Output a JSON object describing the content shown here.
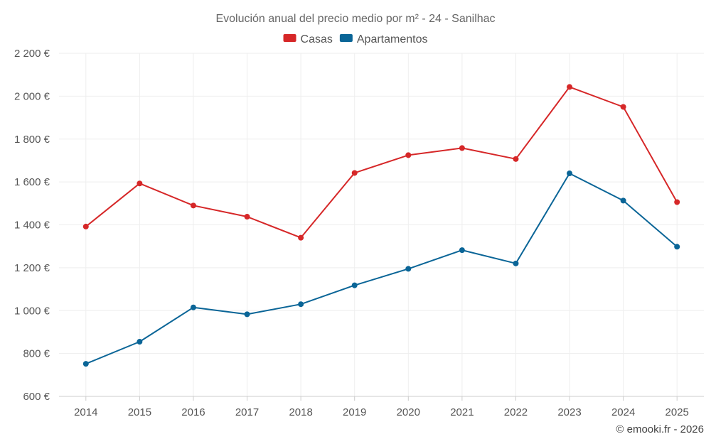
{
  "chart_data": {
    "type": "line",
    "title": "Evolución anual del precio medio por m² - 24 - Sanilhac",
    "categories": [
      "2014",
      "2015",
      "2016",
      "2017",
      "2018",
      "2019",
      "2020",
      "2021",
      "2022",
      "2023",
      "2024",
      "2025"
    ],
    "series": [
      {
        "name": "Casas",
        "color": "#d62728",
        "values": [
          1392,
          1593,
          1490,
          1438,
          1340,
          1642,
          1725,
          1758,
          1707,
          2043,
          1950,
          1506
        ]
      },
      {
        "name": "Apartamentos",
        "color": "#0a6597",
        "values": [
          752,
          855,
          1015,
          983,
          1030,
          1118,
          1195,
          1282,
          1220,
          1640,
          1513,
          1298
        ]
      }
    ],
    "ylim": [
      600,
      2200
    ],
    "y_ticks": [
      600,
      800,
      1000,
      1200,
      1400,
      1600,
      1800,
      2000,
      2200
    ],
    "y_tick_labels": [
      "600 €",
      "800 €",
      "1 000 €",
      "1 200 €",
      "1 400 €",
      "1 600 €",
      "1 800 €",
      "2 000 €",
      "2 200 €"
    ],
    "grid": true,
    "legend": "top-center"
  },
  "credit": "© emooki.fr - 2026"
}
